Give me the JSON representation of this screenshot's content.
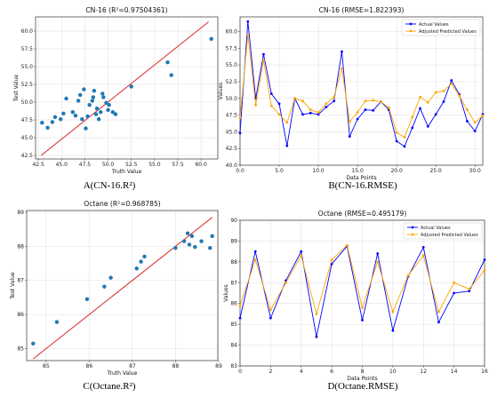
{
  "chart_data": [
    {
      "id": "A",
      "type": "scatter",
      "title": "CN-16 (R²=0.97504361)",
      "xlabel": "Truth Value",
      "ylabel": "Test Value",
      "caption": "A(CN-16.R²)",
      "xlim": [
        42.2,
        61.8
      ],
      "ylim": [
        42.0,
        62.0
      ],
      "xticks": [
        42.5,
        45.0,
        47.5,
        50.0,
        52.5,
        55.0,
        57.5,
        60.0
      ],
      "yticks": [
        42.5,
        45.0,
        47.5,
        50.0,
        52.5,
        55.0,
        57.5,
        60.0
      ],
      "tick_format": "1dp",
      "fit_line": [
        [
          42.8,
          42.5
        ],
        [
          60.8,
          61.3
        ]
      ],
      "fit_color": "#d62728",
      "point_color": "#1f77b4",
      "grid": true,
      "points": [
        [
          42.9,
          47.1
        ],
        [
          43.5,
          46.4
        ],
        [
          44.0,
          47.2
        ],
        [
          44.3,
          47.9
        ],
        [
          44.9,
          47.6
        ],
        [
          45.2,
          48.4
        ],
        [
          45.5,
          50.5
        ],
        [
          46.2,
          48.6
        ],
        [
          46.5,
          48.1
        ],
        [
          46.8,
          50.2
        ],
        [
          47.0,
          51.0
        ],
        [
          47.2,
          47.6
        ],
        [
          47.4,
          51.8
        ],
        [
          47.6,
          46.3
        ],
        [
          47.8,
          48.0
        ],
        [
          48.0,
          49.6
        ],
        [
          48.3,
          50.2
        ],
        [
          48.4,
          50.7
        ],
        [
          48.5,
          51.6
        ],
        [
          48.7,
          48.3
        ],
        [
          48.8,
          49.1
        ],
        [
          49.0,
          47.6
        ],
        [
          49.2,
          48.6
        ],
        [
          49.4,
          51.2
        ],
        [
          49.5,
          50.7
        ],
        [
          49.8,
          49.9
        ],
        [
          50.0,
          48.9
        ],
        [
          50.1,
          49.6
        ],
        [
          50.5,
          48.6
        ],
        [
          50.8,
          48.3
        ],
        [
          52.5,
          52.2
        ],
        [
          56.4,
          55.6
        ],
        [
          56.8,
          53.8
        ],
        [
          61.1,
          58.9
        ]
      ]
    },
    {
      "id": "B",
      "type": "line",
      "title": "CN-16 (RMSE=1.822393)",
      "xlabel": "Data Points",
      "ylabel": "Values",
      "caption": "B(CN-16.RMSE)",
      "xlim": [
        0,
        31
      ],
      "ylim": [
        40.0,
        62.2
      ],
      "xticks": [
        0,
        5,
        10,
        15,
        20,
        25,
        30
      ],
      "yticks": [
        40.0,
        42.5,
        45.0,
        47.5,
        50.0,
        52.5,
        55.0,
        57.5,
        60.0
      ],
      "tick_format": "1dp",
      "legend_position": "top-right",
      "grid": true,
      "x": [
        0,
        1,
        2,
        3,
        4,
        5,
        6,
        7,
        8,
        9,
        10,
        11,
        12,
        13,
        14,
        15,
        16,
        17,
        18,
        19,
        20,
        21,
        22,
        23,
        24,
        25,
        26,
        27,
        28,
        29,
        30,
        31
      ],
      "series": [
        {
          "name": "Actual Values",
          "color": "#0000ff",
          "marker": "circle",
          "values": [
            44.8,
            61.5,
            50.0,
            56.6,
            50.7,
            49.2,
            42.9,
            50.0,
            47.6,
            47.8,
            47.6,
            48.7,
            49.6,
            57.0,
            44.3,
            46.9,
            48.3,
            48.2,
            49.5,
            48.3,
            43.6,
            42.8,
            45.6,
            48.5,
            45.8,
            47.6,
            49.5,
            52.7,
            50.6,
            46.6,
            45.1,
            47.6
          ]
        },
        {
          "name": "Adjusted Predicted Values",
          "color": "#ffa500",
          "marker": "circle",
          "values": [
            47.1,
            59.5,
            49.0,
            55.7,
            48.9,
            47.6,
            46.4,
            50.0,
            49.6,
            48.3,
            47.9,
            49.2,
            50.2,
            54.5,
            46.5,
            47.9,
            49.6,
            49.7,
            49.5,
            48.6,
            44.9,
            44.2,
            47.2,
            50.2,
            49.4,
            50.9,
            51.1,
            52.2,
            50.4,
            48.3,
            46.4,
            47.4
          ]
        }
      ]
    },
    {
      "id": "C",
      "type": "scatter",
      "title": "Octane (R²=0.968785)",
      "xlabel": "Truth Value",
      "ylabel": "Test Value",
      "caption": "C(Octane.R²)",
      "xlim": [
        84.55,
        88.98
      ],
      "ylim": [
        84.65,
        89.05
      ],
      "xticks": [
        85,
        86,
        87,
        88,
        89
      ],
      "yticks": [
        85,
        86,
        87,
        88,
        89
      ],
      "tick_format": "int",
      "fit_line": [
        [
          84.7,
          84.7
        ],
        [
          88.85,
          88.85
        ]
      ],
      "fit_color": "#d62728",
      "point_color": "#1f77b4",
      "grid": true,
      "points": [
        [
          84.7,
          85.15
        ],
        [
          85.25,
          85.78
        ],
        [
          85.95,
          86.45
        ],
        [
          86.35,
          86.82
        ],
        [
          86.5,
          87.08
        ],
        [
          87.1,
          87.35
        ],
        [
          87.2,
          87.55
        ],
        [
          87.28,
          87.7
        ],
        [
          88.0,
          87.95
        ],
        [
          88.2,
          88.15
        ],
        [
          88.28,
          88.38
        ],
        [
          88.32,
          88.05
        ],
        [
          88.38,
          88.3
        ],
        [
          88.45,
          87.98
        ],
        [
          88.6,
          88.15
        ],
        [
          88.85,
          88.3
        ],
        [
          88.8,
          87.95
        ]
      ]
    },
    {
      "id": "D",
      "type": "line",
      "title": "Octane (RMSE=0.495179)",
      "xlabel": "Data Points",
      "ylabel": "Values",
      "caption": "D(Octane.RMSE)",
      "xlim": [
        0,
        16
      ],
      "ylim": [
        83,
        90
      ],
      "xticks": [
        0,
        2,
        4,
        6,
        8,
        10,
        12,
        14,
        16
      ],
      "yticks": [
        83,
        84,
        85,
        86,
        87,
        88,
        89,
        90
      ],
      "tick_format": "int",
      "legend_position": "top-right",
      "grid": true,
      "x": [
        0,
        1,
        2,
        3,
        4,
        5,
        6,
        7,
        8,
        9,
        10,
        11,
        12,
        13,
        14,
        15,
        16
      ],
      "series": [
        {
          "name": "Actual Values",
          "color": "#0000ff",
          "marker": "circle",
          "values": [
            85.3,
            88.5,
            85.3,
            87.1,
            88.5,
            84.4,
            87.9,
            88.75,
            85.2,
            88.4,
            84.7,
            87.3,
            88.7,
            85.1,
            86.5,
            86.6,
            88.1
          ]
        },
        {
          "name": "Adjusted Predicted Values",
          "color": "#ffa500",
          "marker": "circle",
          "values": [
            85.9,
            88.1,
            85.7,
            87.0,
            88.3,
            85.5,
            88.1,
            88.8,
            85.8,
            88.0,
            85.6,
            87.35,
            88.3,
            85.6,
            87.0,
            86.7,
            87.6
          ]
        }
      ]
    }
  ]
}
